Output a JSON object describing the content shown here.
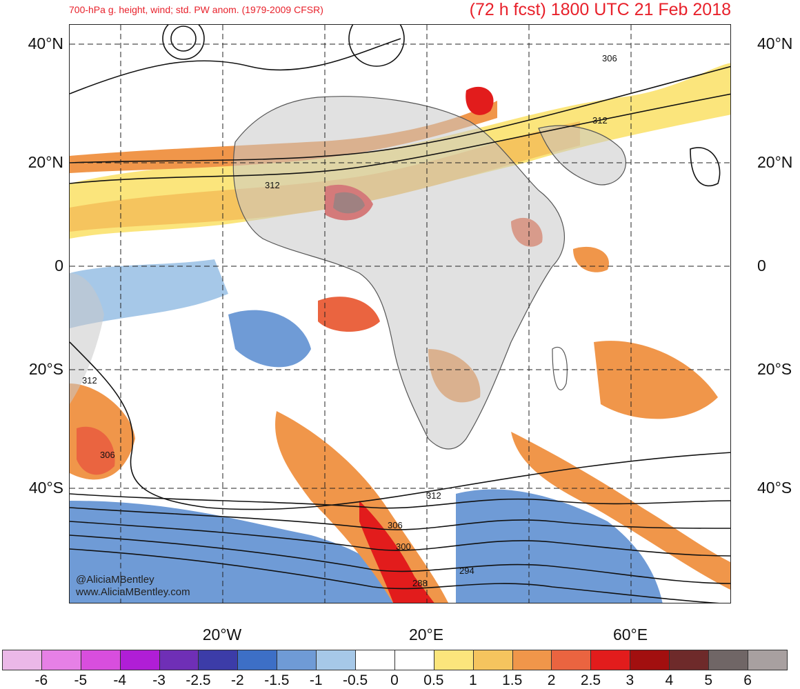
{
  "header": {
    "left_title": "700-hPa g. height, wind; std. PW anom. (1979-2009 CFSR)",
    "right_title": "(72 h fcst) 1800 UTC 21 Feb 2018"
  },
  "axes": {
    "lat_labels": [
      "40°N",
      "20°N",
      "0",
      "20°S",
      "40°S"
    ],
    "lon_labels": [
      "20°W",
      "20°E",
      "60°E"
    ]
  },
  "contour_labels": [
    "306",
    "312",
    "312",
    "312",
    "306",
    "312",
    "306",
    "300",
    "294",
    "288"
  ],
  "credits": {
    "line1": "@AliciaMBentley",
    "line2": "www.AliciaMBentley.com"
  },
  "colorbar": {
    "colors": [
      "#ebb8e8",
      "#e680e6",
      "#d84ede",
      "#b01ed6",
      "#6f2fb6",
      "#3c3ca8",
      "#3d6fc6",
      "#6f9bd6",
      "#a6c8e8",
      "#ffffff",
      "#ffffff",
      "#fbe57c",
      "#f5c45e",
      "#f0964a",
      "#ea6440",
      "#e21c1c",
      "#a20f0f",
      "#6e2a2a",
      "#706666",
      "#a8a0a0"
    ],
    "tick_labels": [
      "-6",
      "-5",
      "-4",
      "-3",
      "-2.5",
      "-2",
      "-1.5",
      "-1",
      "-0.5",
      "0",
      "0.5",
      "1",
      "1.5",
      "2",
      "2.5",
      "3",
      "4",
      "5",
      "6"
    ]
  }
}
